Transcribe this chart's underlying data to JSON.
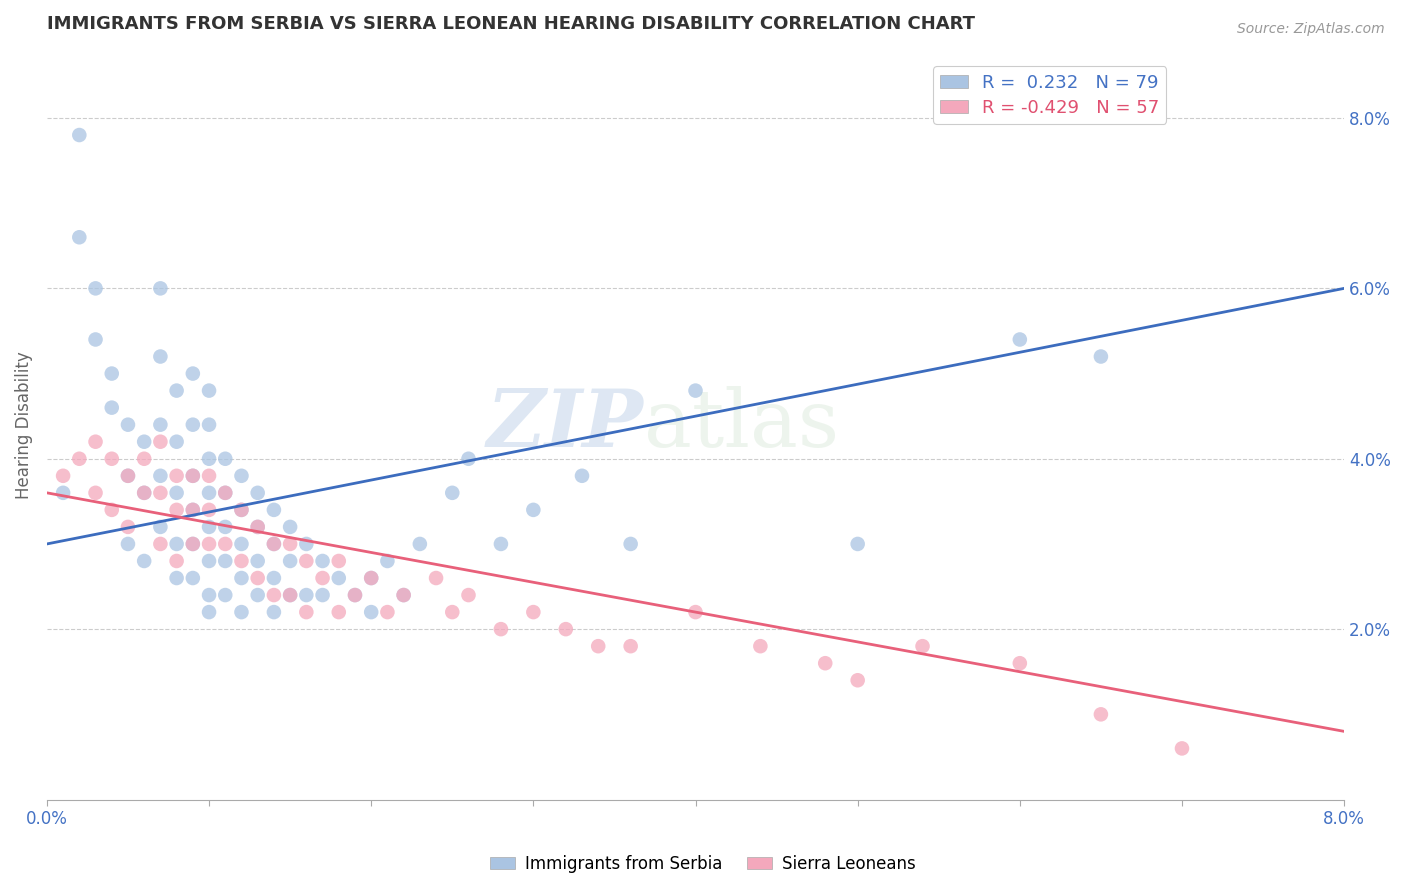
{
  "title": "IMMIGRANTS FROM SERBIA VS SIERRA LEONEAN HEARING DISABILITY CORRELATION CHART",
  "source_text": "Source: ZipAtlas.com",
  "ylabel": "Hearing Disability",
  "xlim": [
    0.0,
    0.08
  ],
  "ylim": [
    0.0,
    0.088
  ],
  "legend_r1": "R =  0.232",
  "legend_n1": "N = 79",
  "legend_r2": "R = -0.429",
  "legend_n2": "N = 57",
  "color_serbia": "#aac4e2",
  "color_sierra": "#f4a8bc",
  "color_serbia_line": "#3c6cbe",
  "color_sierra_line": "#e8607a",
  "color_r_blue": "#4472c4",
  "color_r_pink": "#e05070",
  "watermark_zip": "ZIP",
  "watermark_atlas": "atlas",
  "serbia_x": [
    0.001,
    0.002,
    0.002,
    0.003,
    0.003,
    0.004,
    0.004,
    0.005,
    0.005,
    0.005,
    0.006,
    0.006,
    0.006,
    0.007,
    0.007,
    0.007,
    0.007,
    0.007,
    0.008,
    0.008,
    0.008,
    0.008,
    0.008,
    0.009,
    0.009,
    0.009,
    0.009,
    0.009,
    0.009,
    0.01,
    0.01,
    0.01,
    0.01,
    0.01,
    0.01,
    0.01,
    0.01,
    0.011,
    0.011,
    0.011,
    0.011,
    0.011,
    0.012,
    0.012,
    0.012,
    0.012,
    0.012,
    0.013,
    0.013,
    0.013,
    0.013,
    0.014,
    0.014,
    0.014,
    0.014,
    0.015,
    0.015,
    0.015,
    0.016,
    0.016,
    0.017,
    0.017,
    0.018,
    0.019,
    0.02,
    0.02,
    0.021,
    0.022,
    0.023,
    0.025,
    0.026,
    0.028,
    0.03,
    0.033,
    0.036,
    0.04,
    0.05,
    0.06,
    0.065
  ],
  "serbia_y": [
    0.036,
    0.078,
    0.066,
    0.06,
    0.054,
    0.05,
    0.046,
    0.038,
    0.044,
    0.03,
    0.042,
    0.036,
    0.028,
    0.06,
    0.052,
    0.044,
    0.038,
    0.032,
    0.048,
    0.042,
    0.036,
    0.03,
    0.026,
    0.05,
    0.044,
    0.038,
    0.034,
    0.03,
    0.026,
    0.048,
    0.044,
    0.04,
    0.036,
    0.032,
    0.028,
    0.024,
    0.022,
    0.04,
    0.036,
    0.032,
    0.028,
    0.024,
    0.038,
    0.034,
    0.03,
    0.026,
    0.022,
    0.036,
    0.032,
    0.028,
    0.024,
    0.034,
    0.03,
    0.026,
    0.022,
    0.032,
    0.028,
    0.024,
    0.03,
    0.024,
    0.028,
    0.024,
    0.026,
    0.024,
    0.026,
    0.022,
    0.028,
    0.024,
    0.03,
    0.036,
    0.04,
    0.03,
    0.034,
    0.038,
    0.03,
    0.048,
    0.03,
    0.054,
    0.052
  ],
  "sierra_x": [
    0.001,
    0.002,
    0.003,
    0.003,
    0.004,
    0.004,
    0.005,
    0.005,
    0.006,
    0.006,
    0.007,
    0.007,
    0.007,
    0.008,
    0.008,
    0.008,
    0.009,
    0.009,
    0.009,
    0.01,
    0.01,
    0.01,
    0.011,
    0.011,
    0.012,
    0.012,
    0.013,
    0.013,
    0.014,
    0.014,
    0.015,
    0.015,
    0.016,
    0.016,
    0.017,
    0.018,
    0.018,
    0.019,
    0.02,
    0.021,
    0.022,
    0.024,
    0.025,
    0.026,
    0.028,
    0.03,
    0.032,
    0.034,
    0.036,
    0.04,
    0.044,
    0.048,
    0.05,
    0.054,
    0.06,
    0.065,
    0.07
  ],
  "sierra_y": [
    0.038,
    0.04,
    0.042,
    0.036,
    0.04,
    0.034,
    0.038,
    0.032,
    0.04,
    0.036,
    0.042,
    0.036,
    0.03,
    0.038,
    0.034,
    0.028,
    0.038,
    0.034,
    0.03,
    0.038,
    0.034,
    0.03,
    0.036,
    0.03,
    0.034,
    0.028,
    0.032,
    0.026,
    0.03,
    0.024,
    0.03,
    0.024,
    0.028,
    0.022,
    0.026,
    0.028,
    0.022,
    0.024,
    0.026,
    0.022,
    0.024,
    0.026,
    0.022,
    0.024,
    0.02,
    0.022,
    0.02,
    0.018,
    0.018,
    0.022,
    0.018,
    0.016,
    0.014,
    0.018,
    0.016,
    0.01,
    0.006
  ],
  "trendline_serbia_x0": 0.0,
  "trendline_serbia_y0": 0.03,
  "trendline_serbia_x1": 0.08,
  "trendline_serbia_y1": 0.06,
  "trendline_sierra_x0": 0.0,
  "trendline_sierra_y0": 0.036,
  "trendline_sierra_x1": 0.08,
  "trendline_sierra_y1": 0.008
}
